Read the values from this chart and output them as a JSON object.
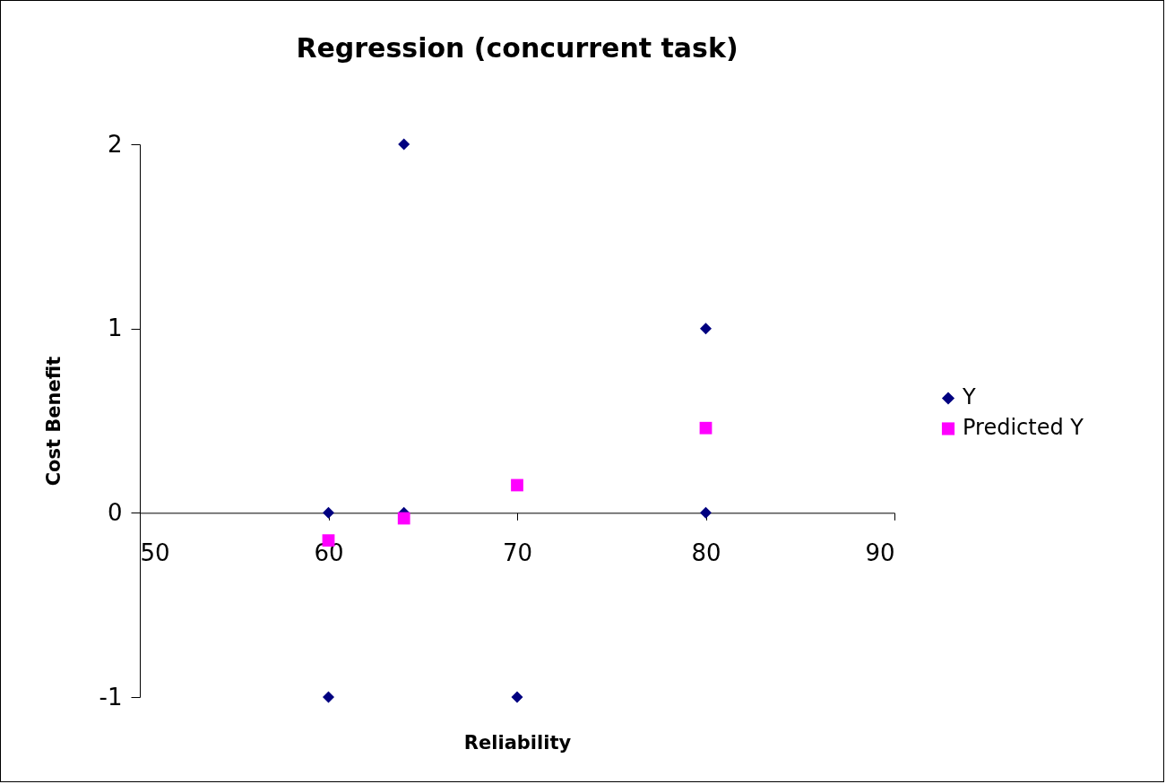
{
  "chart_data": {
    "type": "scatter",
    "title": "Regression (concurrent task)",
    "xlabel": "Reliability",
    "ylabel": "Cost Benefit",
    "xlim": [
      50,
      90
    ],
    "xticks": [
      50,
      60,
      70,
      80,
      90
    ],
    "ylim": [
      -1,
      2
    ],
    "yticks": [
      -1,
      0,
      1,
      2
    ],
    "grid": false,
    "legend": "right",
    "series": [
      {
        "name": "Y",
        "color": "#000080",
        "marker": "diamond",
        "x": [
          64,
          80,
          60,
          64,
          80,
          60,
          70
        ],
        "values": [
          2,
          1,
          0,
          0,
          0,
          -1,
          -1
        ]
      },
      {
        "name": "Predicted Y",
        "color": "#ff00ff",
        "marker": "square",
        "x": [
          60,
          64,
          70,
          80
        ],
        "values": [
          -0.15,
          -0.03,
          0.15,
          0.46
        ]
      }
    ]
  }
}
